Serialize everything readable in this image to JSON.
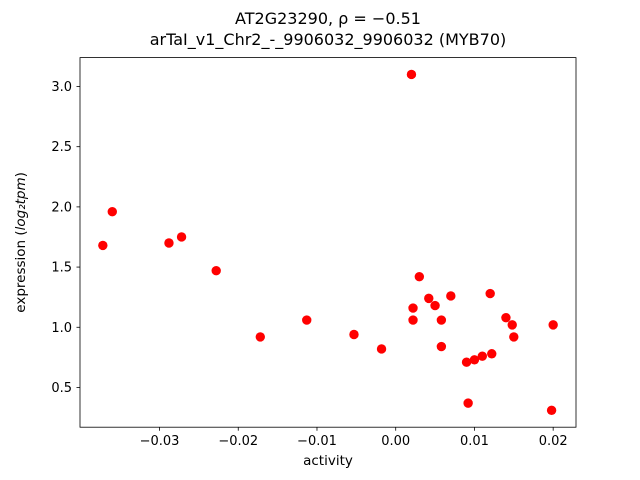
{
  "figure": {
    "background": "#ffffff"
  },
  "chart_data": {
    "type": "scatter",
    "title": "AT2G23290, ρ = −0.51",
    "subtitle": "arTaI_v1_Chr2_-_9906032_9906032 (MYB70)",
    "xlabel": "activity",
    "ylabel": {
      "pre": "expression (",
      "math": "log₂tpm",
      "post": ")"
    },
    "marker_color": "#ff0000",
    "marker_radius": 4.7,
    "grid": false,
    "legend": null,
    "xlim": [
      -0.0401,
      0.0229
    ],
    "ylim": [
      0.17,
      3.24
    ],
    "xticks": [
      -0.03,
      -0.02,
      -0.01,
      0.0,
      0.01,
      0.02
    ],
    "xtick_labels": [
      "−0.03",
      "−0.02",
      "−0.01",
      "0.00",
      "0.01",
      "0.02"
    ],
    "yticks": [
      0.5,
      1.0,
      1.5,
      2.0,
      2.5,
      3.0
    ],
    "ytick_labels": [
      "0.5",
      "1.0",
      "1.5",
      "2.0",
      "2.5",
      "3.0"
    ],
    "points": [
      [
        -0.0372,
        1.68
      ],
      [
        -0.036,
        1.96
      ],
      [
        -0.0288,
        1.7
      ],
      [
        -0.0272,
        1.75
      ],
      [
        -0.0228,
        1.47
      ],
      [
        -0.0172,
        0.92
      ],
      [
        -0.0113,
        1.06
      ],
      [
        -0.0053,
        0.94
      ],
      [
        -0.0018,
        0.82
      ],
      [
        0.002,
        3.1
      ],
      [
        0.0022,
        1.16
      ],
      [
        0.0022,
        1.06
      ],
      [
        0.003,
        1.42
      ],
      [
        0.0042,
        1.24
      ],
      [
        0.005,
        1.18
      ],
      [
        0.0058,
        1.06
      ],
      [
        0.0058,
        0.84
      ],
      [
        0.007,
        1.26
      ],
      [
        0.009,
        0.71
      ],
      [
        0.0092,
        0.37
      ],
      [
        0.01,
        0.73
      ],
      [
        0.011,
        0.76
      ],
      [
        0.012,
        1.28
      ],
      [
        0.0122,
        0.78
      ],
      [
        0.014,
        1.08
      ],
      [
        0.0148,
        1.02
      ],
      [
        0.015,
        0.92
      ],
      [
        0.0198,
        0.31
      ],
      [
        0.02,
        1.02
      ]
    ]
  }
}
